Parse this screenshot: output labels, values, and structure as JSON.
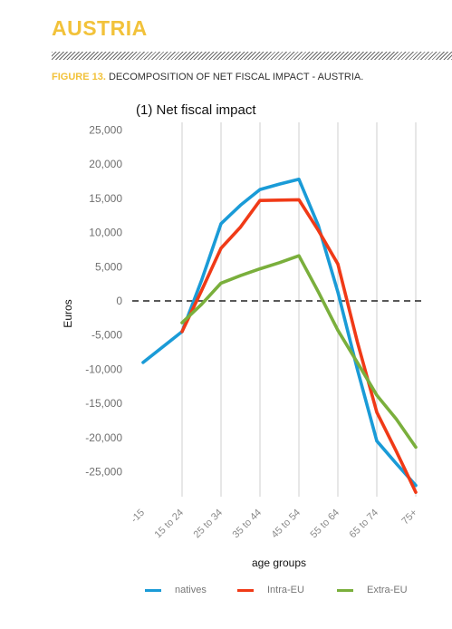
{
  "header": {
    "country_title": "AUSTRIA",
    "figure_label": "FIGURE 13.",
    "figure_caption": "DECOMPOSITION OF NET FISCAL IMPACT - AUSTRIA."
  },
  "colors": {
    "accent": "#f2c23a",
    "natives": "#1a9bd7",
    "intra_eu": "#f03a17",
    "extra_eu": "#7aaf3c"
  },
  "chart_data": {
    "type": "line",
    "title": "(1) Net fiscal impact",
    "xlabel": "age groups",
    "ylabel": "Euros",
    "categories": [
      "-15",
      "15 to 24",
      "25 to 34",
      "35 to 44",
      "45 to 54",
      "55 to 64",
      "65 to 74",
      "75+"
    ],
    "y_ticks": [
      25000,
      20000,
      15000,
      10000,
      5000,
      0,
      -5000,
      -10000,
      -15000,
      -20000,
      -25000
    ],
    "y_tick_labels": [
      "25,000",
      "20,000",
      "15,000",
      "10,000",
      "5,000",
      "0",
      "-5,000",
      "-10,000",
      "-15,000",
      "-20,000",
      "-25,000"
    ],
    "ylim": [
      -28000,
      25000
    ],
    "zero_line": "dashed",
    "grid": "vertical",
    "legend_position": "bottom",
    "series": [
      {
        "name": "natives",
        "color": "#1a9bd7",
        "points": [
          [
            0,
            -9000
          ],
          [
            1,
            -4500
          ],
          [
            1.5,
            3000
          ],
          [
            2,
            11300
          ],
          [
            2.5,
            14000
          ],
          [
            3,
            16300
          ],
          [
            3.5,
            17100
          ],
          [
            4,
            17800
          ],
          [
            4.5,
            11000
          ],
          [
            5,
            1300
          ],
          [
            5.5,
            -10000
          ],
          [
            6,
            -20500
          ],
          [
            6.5,
            -23800
          ],
          [
            7,
            -27000
          ]
        ]
      },
      {
        "name": "Intra-EU",
        "color": "#f03a17",
        "points": [
          [
            1,
            -4500
          ],
          [
            1.5,
            1500
          ],
          [
            2,
            7700
          ],
          [
            2.5,
            10800
          ],
          [
            3,
            14700
          ],
          [
            4,
            14800
          ],
          [
            4.5,
            10300
          ],
          [
            5,
            5400
          ],
          [
            5.5,
            -6000
          ],
          [
            6,
            -16300
          ],
          [
            6.5,
            -22000
          ],
          [
            7,
            -28000
          ]
        ]
      },
      {
        "name": "Extra-EU",
        "color": "#7aaf3c",
        "points": [
          [
            1,
            -3200
          ],
          [
            1.5,
            -500
          ],
          [
            2,
            2600
          ],
          [
            2.5,
            3700
          ],
          [
            3,
            4700
          ],
          [
            3.5,
            5600
          ],
          [
            4,
            6600
          ],
          [
            4.5,
            1300
          ],
          [
            5,
            -4300
          ],
          [
            5.5,
            -9000
          ],
          [
            6,
            -13800
          ],
          [
            6.5,
            -17300
          ],
          [
            7,
            -21400
          ]
        ]
      }
    ]
  }
}
